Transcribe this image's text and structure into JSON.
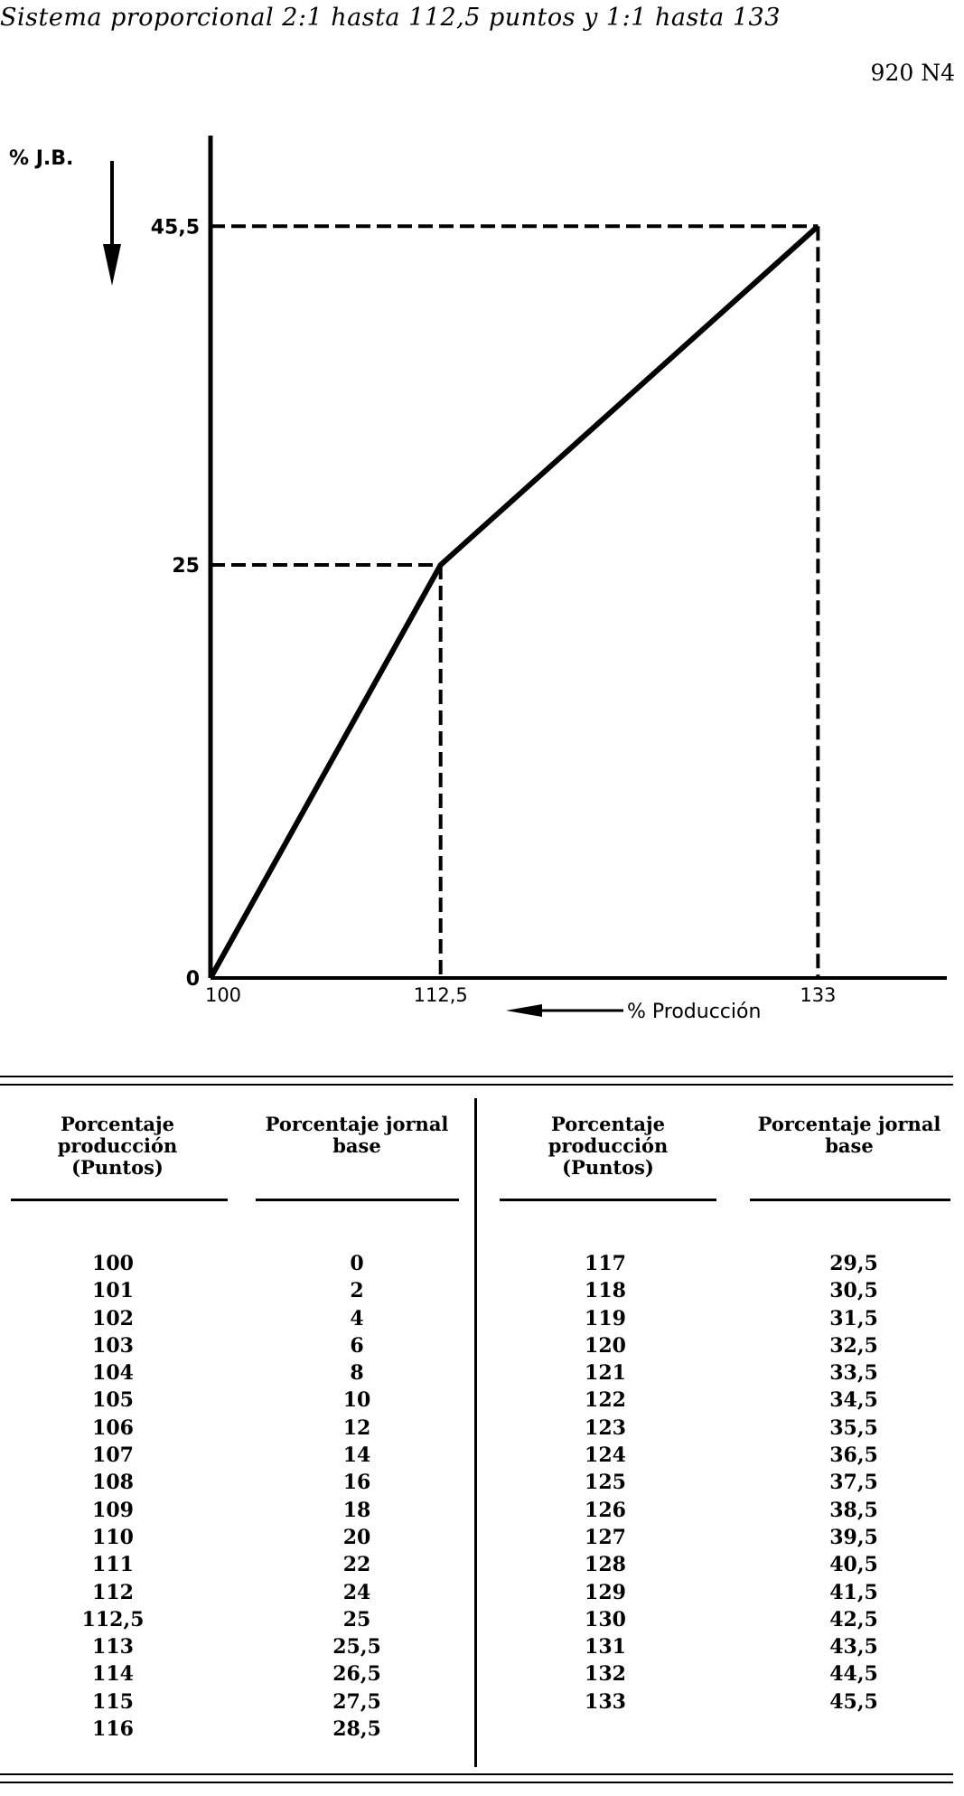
{
  "header": {
    "title": "Sistema proporcional 2:1 hasta 112,5 puntos y 1:1 hasta 133",
    "page_code": "920 N4"
  },
  "chart_data": {
    "type": "line",
    "ylabel": "% J.B.",
    "xlabel": "% Producción",
    "x": [
      100,
      112.5,
      133
    ],
    "series": [
      {
        "values": [
          0,
          25,
          45.5
        ]
      }
    ],
    "xticks": [
      "100",
      "112,5",
      "133"
    ],
    "yticks": [
      "0",
      "25",
      "45,5"
    ],
    "xlim": [
      100,
      140
    ],
    "ylim": [
      0,
      50
    ],
    "reference_lines": [
      {
        "x": 112.5,
        "y": 25
      },
      {
        "x": 133,
        "y": 45.5
      }
    ],
    "grid": false
  },
  "table": {
    "headers": {
      "production": "Porcentaje producción (Puntos)",
      "wage": "Porcentaje jornal base"
    },
    "left": {
      "production": [
        "100",
        "101",
        "102",
        "103",
        "104",
        "105",
        "106",
        "107",
        "108",
        "109",
        "110",
        "111",
        "112",
        "112,5",
        "113",
        "114",
        "115",
        "116"
      ],
      "wage": [
        "0",
        "2",
        "4",
        "6",
        "8",
        "10",
        "12",
        "14",
        "16",
        "18",
        "20",
        "22",
        "24",
        "25",
        "25,5",
        "26,5",
        "27,5",
        "28,5"
      ]
    },
    "right": {
      "production": [
        "117",
        "118",
        "119",
        "120",
        "121",
        "122",
        "123",
        "124",
        "125",
        "126",
        "127",
        "128",
        "129",
        "130",
        "131",
        "132",
        "133"
      ],
      "wage": [
        "29,5",
        "30,5",
        "31,5",
        "32,5",
        "33,5",
        "34,5",
        "35,5",
        "36,5",
        "37,5",
        "38,5",
        "39,5",
        "40,5",
        "41,5",
        "42,5",
        "43,5",
        "44,5",
        "45,5"
      ]
    }
  }
}
